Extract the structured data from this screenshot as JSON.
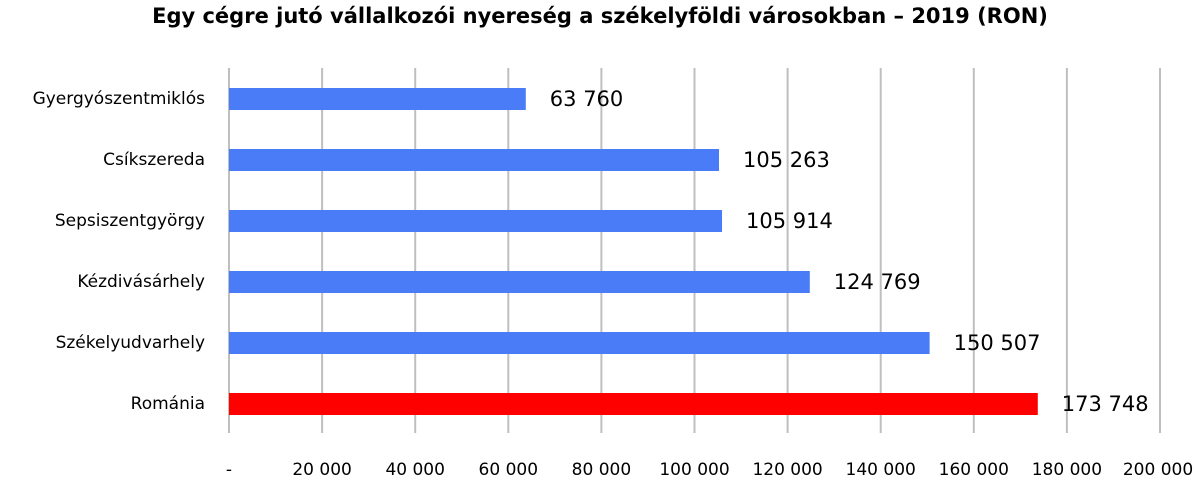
{
  "chart_data": {
    "type": "bar",
    "orientation": "horizontal",
    "title": "Egy cégre jutó vállalkozói nyereség a székelyföldi városokban – 2019 (RON)",
    "categories": [
      "Gyergyószentmiklós",
      "Csíkszereda",
      "Sepsiszentgyörgy",
      "Kézdivásárhely",
      "Székelyudvarhely",
      "Románia"
    ],
    "values": [
      63760,
      105263,
      105914,
      124769,
      150507,
      173748
    ],
    "value_labels": [
      "63 760",
      "105 263",
      "105 914",
      "124 769",
      "150 507",
      "173 748"
    ],
    "bar_colors": [
      "#4a7cf7",
      "#4a7cf7",
      "#4a7cf7",
      "#4a7cf7",
      "#4a7cf7",
      "#ff0000"
    ],
    "xlim": [
      0,
      200000
    ],
    "x_ticks": [
      0,
      20000,
      40000,
      60000,
      80000,
      100000,
      120000,
      140000,
      160000,
      180000,
      200000
    ],
    "x_tick_labels": [
      "-",
      "20 000",
      "40 000",
      "60 000",
      "80 000",
      "100 000",
      "120 000",
      "140 000",
      "160 000",
      "180 000",
      "200 000"
    ],
    "xlabel": "",
    "ylabel": "",
    "grid": "vertical",
    "legend": "none"
  }
}
